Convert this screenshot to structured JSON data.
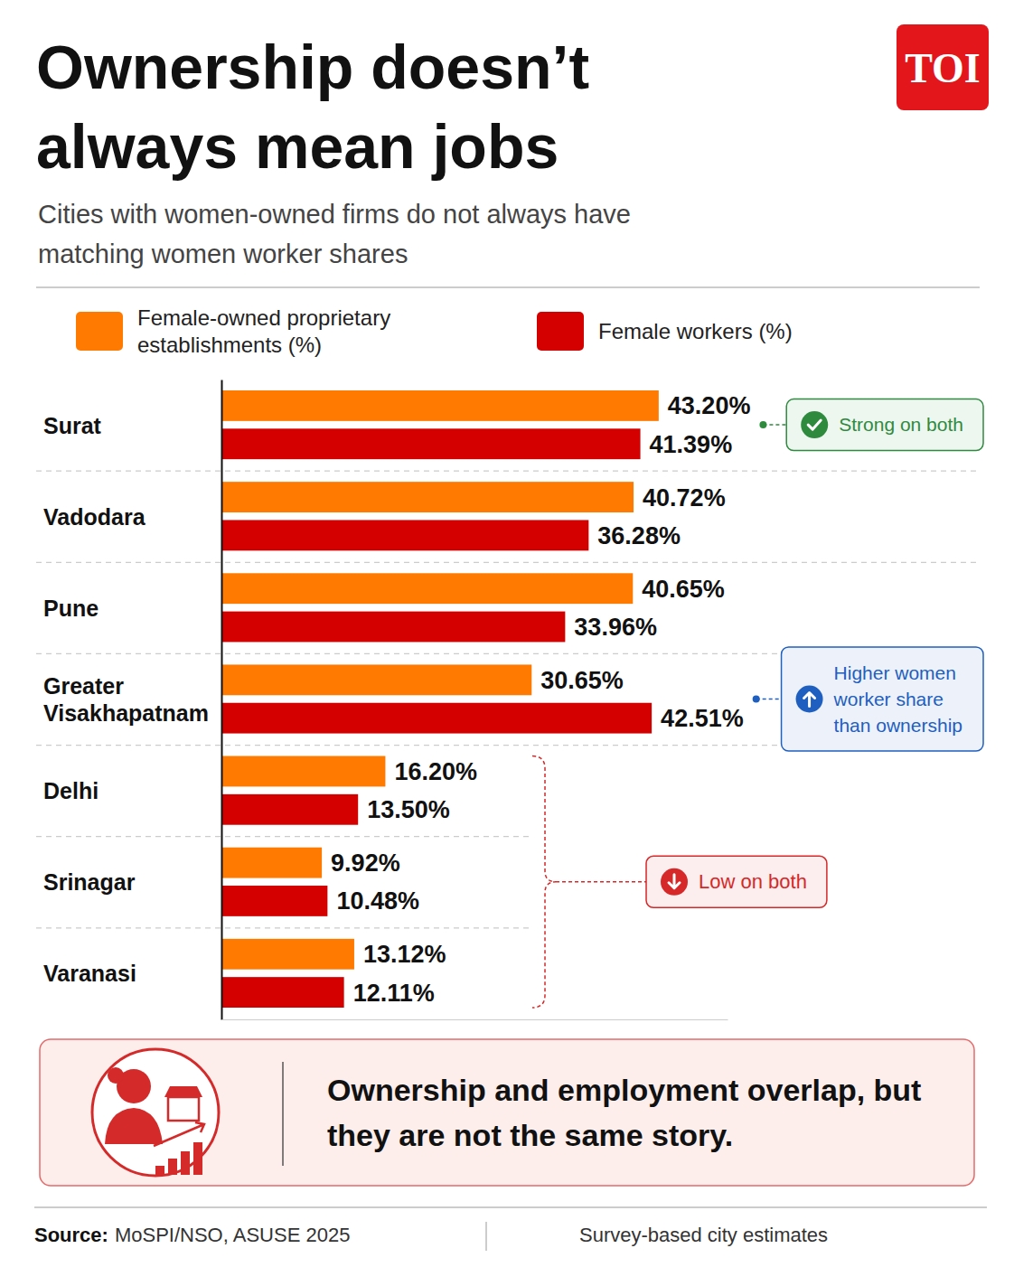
{
  "chart_data": {
    "type": "bar",
    "orientation": "horizontal",
    "title": "Ownership doesn’t always mean jobs",
    "subtitle": "Cities with women-owned firms do not always have matching women worker shares",
    "brand": "TOI",
    "categories": [
      "Surat",
      "Vadodara",
      "Pune",
      "Greater Visakhapatnam",
      "Delhi",
      "Srinagar",
      "Varanasi"
    ],
    "series": [
      {
        "name": "Female-owned proprietary establishments (%)",
        "color": "#ff7a00",
        "values": [
          43.2,
          40.72,
          40.65,
          30.65,
          16.2,
          9.92,
          13.12
        ],
        "value_labels": [
          "43.20%",
          "40.72%",
          "40.65%",
          "30.65%",
          "16.20%",
          "9.92%",
          "13.12%"
        ]
      },
      {
        "name": "Female workers (%)",
        "color": "#d40000",
        "values": [
          41.39,
          36.28,
          33.96,
          42.51,
          13.5,
          10.48,
          12.11
        ],
        "value_labels": [
          "41.39%",
          "36.28%",
          "33.96%",
          "42.51%",
          "13.50%",
          "10.48%",
          "12.11%"
        ]
      }
    ],
    "xlim": [
      0,
      50
    ],
    "data_labels": true,
    "tick_labels": "y",
    "grid": false,
    "legend": "top",
    "annotations": [
      {
        "text": "Strong on both",
        "targets": [
          "Surat"
        ],
        "color": "#2e8b3e",
        "marker": "check"
      },
      {
        "text": "Higher women worker share than ownership",
        "targets": [
          "Greater Visakhapatnam"
        ],
        "color": "#1f5fbf",
        "marker": "arrow-up"
      },
      {
        "text": "Low on both",
        "targets": [
          "Delhi",
          "Srinagar",
          "Varanasi"
        ],
        "color": "#d62828",
        "marker": "arrow-down"
      }
    ],
    "callout": "Ownership and employment overlap, but they are not the same story.",
    "source_label": "Source:",
    "source": "MoSPI/NSO, ASUSE 2025",
    "note": "Survey-based city estimates"
  }
}
